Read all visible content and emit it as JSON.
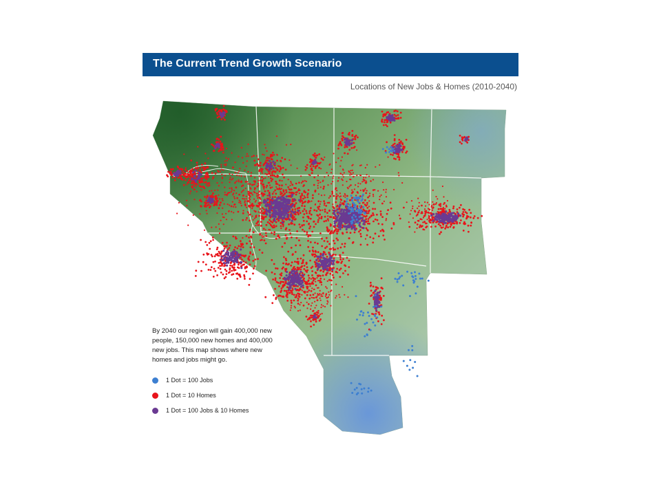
{
  "title": "The Current Trend Growth Scenario",
  "subtitle": "Locations of New Jobs & Homes (2010-2040)",
  "caption": "By 2040 our region will gain 400,000 new people, 150,000 new homes and 400,000 new jobs. This map shows where new homes and jobs might go.",
  "legend": [
    {
      "label": "1 Dot = 100 Jobs",
      "color": "#3d7fd1",
      "icon": "blue-dot-icon"
    },
    {
      "label": "1 Dot = 10 Homes",
      "color": "#e8141b",
      "icon": "red-dot-icon"
    },
    {
      "label": "1 Dot = 100 Jobs & 10 Homes",
      "color": "#6a3a92",
      "icon": "purple-dot-icon"
    }
  ],
  "colors": {
    "title_bar": "#0b4f8f",
    "jobs": "#3d7fd1",
    "homes": "#e8141b",
    "jobs_and_homes": "#6a3a92",
    "terrain_dark": "#3f7a3f",
    "terrain_light": "#a9c8a4",
    "water": "#6f98d8",
    "county_border": "#ffffff"
  }
}
